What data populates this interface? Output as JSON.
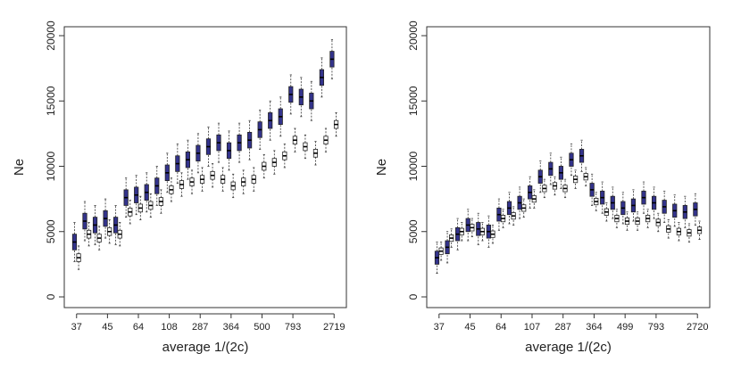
{
  "chart_data": [
    {
      "type": "boxplot",
      "xlabel": "average 1/(2c)",
      "ylabel": "Ne",
      "categories": [
        "37",
        null,
        null,
        "45",
        null,
        null,
        "64",
        null,
        null,
        "108",
        null,
        null,
        "287",
        null,
        null,
        "364",
        null,
        null,
        "500",
        null,
        null,
        "793",
        null,
        null,
        null,
        "2719"
      ],
      "ylim": [
        0,
        20000
      ],
      "yticks": [
        0,
        5000,
        10000,
        15000,
        20000
      ],
      "series": [
        {
          "color": "#33338c",
          "boxes": [
            [
              2700,
              3600,
              4200,
              4800,
              5700
            ],
            [
              4300,
              5200,
              5800,
              6400,
              7300
            ],
            [
              4000,
              4900,
              5500,
              6100,
              7000
            ],
            [
              4500,
              5400,
              6000,
              6600,
              7500
            ],
            [
              4000,
              4900,
              5500,
              6100,
              7000
            ],
            [
              6100,
              7000,
              7600,
              8200,
              9100
            ],
            [
              6300,
              7200,
              7800,
              8400,
              9300
            ],
            [
              6500,
              7400,
              8000,
              8600,
              9500
            ],
            [
              7000,
              7900,
              8500,
              9100,
              10000
            ],
            [
              8000,
              8900,
              9500,
              10100,
              11000
            ],
            [
              8700,
              9600,
              10200,
              10800,
              11700
            ],
            [
              9000,
              9900,
              10500,
              11100,
              12000
            ],
            [
              9500,
              10400,
              11000,
              11600,
              12500
            ],
            [
              10000,
              10900,
              11500,
              12100,
              13000
            ],
            [
              10300,
              11200,
              11800,
              12400,
              13300
            ],
            [
              9700,
              10600,
              11200,
              11800,
              12700
            ],
            [
              10300,
              11200,
              11800,
              12400,
              13300
            ],
            [
              10500,
              11400,
              12000,
              12600,
              13500
            ],
            [
              11300,
              12200,
              12800,
              13400,
              14300
            ],
            [
              12000,
              12900,
              13500,
              14100,
              15000
            ],
            [
              12300,
              13200,
              13800,
              14400,
              15300
            ],
            [
              14000,
              14900,
              15500,
              16100,
              17000
            ],
            [
              13800,
              14700,
              15300,
              15900,
              16800
            ],
            [
              13500,
              14400,
              15000,
              15600,
              16500
            ],
            [
              15300,
              16200,
              16800,
              17400,
              18300
            ],
            [
              16700,
              17600,
              18200,
              18800,
              19700
            ]
          ]
        },
        {
          "color": "#ffffff",
          "boxes": [
            [
              2100,
              2700,
              3000,
              3300,
              3900
            ],
            [
              3900,
              4500,
              4800,
              5100,
              5700
            ],
            [
              3600,
              4200,
              4500,
              4800,
              5400
            ],
            [
              4100,
              4700,
              5000,
              5300,
              5900
            ],
            [
              3900,
              4500,
              4800,
              5100,
              5700
            ],
            [
              5600,
              6200,
              6500,
              6800,
              7400
            ],
            [
              5900,
              6500,
              6800,
              7100,
              7700
            ],
            [
              6100,
              6700,
              7000,
              7300,
              7900
            ],
            [
              6400,
              7000,
              7300,
              7600,
              8200
            ],
            [
              7300,
              7900,
              8200,
              8500,
              9100
            ],
            [
              7700,
              8300,
              8600,
              8900,
              9500
            ],
            [
              7900,
              8500,
              8800,
              9100,
              9700
            ],
            [
              8100,
              8700,
              9000,
              9300,
              9900
            ],
            [
              8400,
              9000,
              9300,
              9600,
              10200
            ],
            [
              8100,
              8700,
              9000,
              9300,
              9900
            ],
            [
              7600,
              8200,
              8500,
              8800,
              9400
            ],
            [
              7900,
              8500,
              8800,
              9100,
              9700
            ],
            [
              8100,
              8700,
              9000,
              9300,
              9900
            ],
            [
              9100,
              9700,
              10000,
              10300,
              10900
            ],
            [
              9400,
              10000,
              10300,
              10600,
              11200
            ],
            [
              9900,
              10500,
              10800,
              11100,
              11700
            ],
            [
              11100,
              11700,
              12000,
              12300,
              12900
            ],
            [
              10600,
              11200,
              11500,
              11800,
              12400
            ],
            [
              10100,
              10700,
              11000,
              11300,
              11900
            ],
            [
              11100,
              11700,
              12000,
              12300,
              12900
            ],
            [
              12300,
              12900,
              13200,
              13500,
              14100
            ]
          ]
        }
      ]
    },
    {
      "type": "boxplot",
      "xlabel": "average 1/(2c)",
      "ylabel": "Ne",
      "categories": [
        "37",
        null,
        null,
        "45",
        null,
        null,
        "64",
        null,
        null,
        "107",
        null,
        null,
        "287",
        null,
        null,
        "364",
        null,
        null,
        "499",
        null,
        null,
        "793",
        null,
        null,
        null,
        "2720"
      ],
      "ylim": [
        0,
        20000
      ],
      "yticks": [
        0,
        5000,
        10000,
        15000,
        20000
      ],
      "series": [
        {
          "color": "#33338c",
          "boxes": [
            [
              1800,
              2500,
              3000,
              3500,
              4200
            ],
            [
              2600,
              3300,
              3800,
              4300,
              5000
            ],
            [
              3600,
              4300,
              4800,
              5300,
              6000
            ],
            [
              4300,
              5000,
              5500,
              6000,
              6700
            ],
            [
              4000,
              4700,
              5200,
              5700,
              6400
            ],
            [
              3800,
              4500,
              5000,
              5500,
              6200
            ],
            [
              5100,
              5800,
              6300,
              6800,
              7500
            ],
            [
              5600,
              6300,
              6800,
              7300,
              8000
            ],
            [
              6000,
              6700,
              7200,
              7700,
              8400
            ],
            [
              6800,
              7500,
              8000,
              8500,
              9200
            ],
            [
              8000,
              8700,
              9200,
              9700,
              10400
            ],
            [
              8600,
              9300,
              9800,
              10300,
              11000
            ],
            [
              8300,
              9000,
              9500,
              10000,
              10700
            ],
            [
              9300,
              10000,
              10500,
              11000,
              11700
            ],
            [
              9600,
              10300,
              10800,
              11300,
              12000
            ],
            [
              7000,
              7700,
              8200,
              8700,
              9400
            ],
            [
              6400,
              7100,
              7600,
              8100,
              8800
            ],
            [
              6000,
              6700,
              7200,
              7700,
              8400
            ],
            [
              5600,
              6300,
              6800,
              7300,
              8000
            ],
            [
              5800,
              6500,
              7000,
              7500,
              8200
            ],
            [
              6400,
              7100,
              7600,
              8100,
              8800
            ],
            [
              6000,
              6700,
              7200,
              7700,
              8400
            ],
            [
              5700,
              6400,
              6900,
              7400,
              8100
            ],
            [
              5400,
              6100,
              6600,
              7100,
              7800
            ],
            [
              5300,
              6000,
              6500,
              7000,
              7700
            ],
            [
              5500,
              6200,
              6700,
              7200,
              7900
            ]
          ]
        },
        {
          "color": "#ffffff",
          "boxes": [
            [
              2800,
              3250,
              3500,
              3750,
              4200
            ],
            [
              3800,
              4250,
              4500,
              4750,
              5200
            ],
            [
              4300,
              4750,
              5000,
              5250,
              5700
            ],
            [
              4600,
              5050,
              5300,
              5550,
              6000
            ],
            [
              4300,
              4750,
              5000,
              5250,
              5700
            ],
            [
              4100,
              4550,
              4800,
              5050,
              5500
            ],
            [
              5300,
              5750,
              6000,
              6250,
              6700
            ],
            [
              5500,
              5950,
              6200,
              6450,
              6900
            ],
            [
              6100,
              6550,
              6800,
              7050,
              7500
            ],
            [
              6800,
              7250,
              7500,
              7750,
              8200
            ],
            [
              7600,
              8050,
              8300,
              8550,
              9000
            ],
            [
              7800,
              8250,
              8500,
              8750,
              9200
            ],
            [
              7600,
              8050,
              8300,
              8550,
              9000
            ],
            [
              8300,
              8750,
              9000,
              9250,
              9700
            ],
            [
              8500,
              8950,
              9200,
              9450,
              9900
            ],
            [
              6600,
              7050,
              7300,
              7550,
              8000
            ],
            [
              5800,
              6250,
              6500,
              6750,
              7200
            ],
            [
              5300,
              5750,
              6000,
              6250,
              6700
            ],
            [
              5100,
              5550,
              5800,
              6050,
              6500
            ],
            [
              5100,
              5550,
              5800,
              6050,
              6500
            ],
            [
              5300,
              5750,
              6000,
              6250,
              6700
            ],
            [
              5000,
              5450,
              5700,
              5950,
              6400
            ],
            [
              4500,
              4950,
              5200,
              5450,
              5900
            ],
            [
              4300,
              4750,
              5000,
              5250,
              5700
            ],
            [
              4200,
              4650,
              4900,
              5150,
              5600
            ],
            [
              4400,
              4850,
              5100,
              5350,
              5800
            ]
          ]
        }
      ]
    }
  ]
}
